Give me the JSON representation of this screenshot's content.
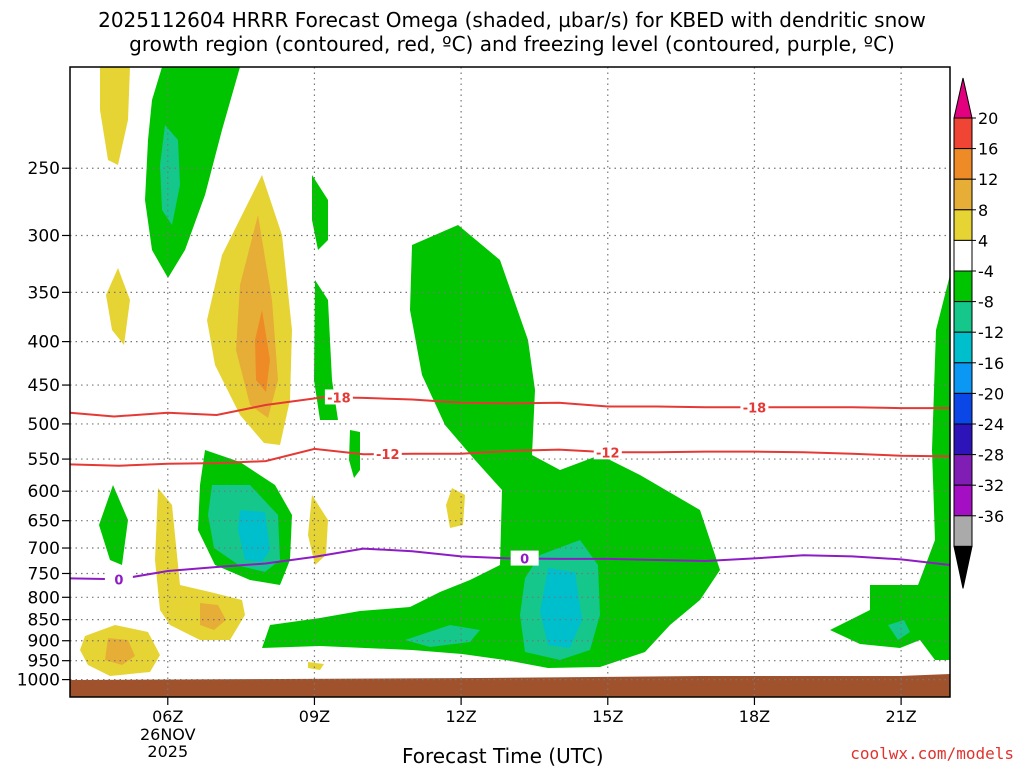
{
  "title_line1": "2025112604 HRRR Forecast Omega (shaded, µbar/s) for KBED with dendritic snow",
  "title_line2": "growth region (contoured, red, ºC) and freezing level (contoured, purple, ºC)",
  "credit": "coolwx.com/models",
  "chart_data": {
    "type": "contour",
    "title": "2025112604 HRRR Forecast Omega (shaded, µbar/s) for KBED with dendritic snow growth region (contoured, red, ºC) and freezing level (contoured, purple, ºC)",
    "xlabel": "Forecast Time (UTC)",
    "ylabel": "",
    "x_ticks": [
      {
        "hour": 6,
        "label": "06Z",
        "sublabels": [
          "26NOV",
          "2025"
        ]
      },
      {
        "hour": 9,
        "label": "09Z",
        "sublabels": []
      },
      {
        "hour": 12,
        "label": "12Z",
        "sublabels": []
      },
      {
        "hour": 15,
        "label": "15Z",
        "sublabels": []
      },
      {
        "hour": 18,
        "label": "18Z",
        "sublabels": []
      },
      {
        "hour": 21,
        "label": "21Z",
        "sublabels": []
      }
    ],
    "xlim_hours": [
      4,
      22
    ],
    "y_ticks": [
      250,
      300,
      350,
      400,
      450,
      500,
      550,
      600,
      650,
      700,
      750,
      800,
      850,
      900,
      950,
      1000
    ],
    "ylim_hPa": [
      1000,
      190
    ],
    "y_scale": "log-pressure",
    "grid": true,
    "colorbar": {
      "labels": [
        "20",
        "16",
        "12",
        "8",
        "4",
        "-4",
        "-8",
        "-12",
        "-16",
        "-20",
        "-24",
        "-28",
        "-32",
        "-36"
      ],
      "colors": [
        "#e3007f",
        "#f04535",
        "#ef8b26",
        "#e6ae36",
        "#e6d435",
        "#ffffff",
        "#00c400",
        "#15c78a",
        "#00bfcc",
        "#0b97f4",
        "#0a47e6",
        "#2d14b8",
        "#7f1db5",
        "#a50fc4",
        "#aaaaaa",
        "#000000"
      ]
    },
    "isotherms": [
      {
        "label": "-18",
        "color": "#e53935",
        "points": [
          [
            4.0,
            485
          ],
          [
            4.9,
            490
          ],
          [
            6.0,
            485
          ],
          [
            7.0,
            488
          ],
          [
            8.0,
            475
          ],
          [
            9.2,
            465
          ],
          [
            10.0,
            466
          ],
          [
            11.0,
            468
          ],
          [
            12.0,
            472
          ],
          [
            13.0,
            473
          ],
          [
            14.0,
            472
          ],
          [
            15.0,
            477
          ],
          [
            16.0,
            477
          ],
          [
            17.0,
            478
          ],
          [
            18.0,
            478
          ],
          [
            19.0,
            478
          ],
          [
            20.0,
            478
          ],
          [
            21.0,
            479
          ],
          [
            22.0,
            479
          ]
        ]
      },
      {
        "label": "-12",
        "color": "#e53935",
        "points": [
          [
            4.0,
            558
          ],
          [
            5.0,
            560
          ],
          [
            6.0,
            557
          ],
          [
            7.0,
            556
          ],
          [
            8.0,
            553
          ],
          [
            9.0,
            535
          ],
          [
            10.0,
            543
          ],
          [
            11.0,
            542
          ],
          [
            12.0,
            542
          ],
          [
            13.0,
            538
          ],
          [
            14.0,
            536
          ],
          [
            15.0,
            540
          ],
          [
            16.0,
            540
          ],
          [
            17.0,
            539
          ],
          [
            18.0,
            539
          ],
          [
            19.0,
            540
          ],
          [
            20.0,
            542
          ],
          [
            21.0,
            545
          ],
          [
            22.0,
            546
          ]
        ]
      },
      {
        "label": "0",
        "color": "#8e1cc4",
        "points": [
          [
            4.0,
            760
          ],
          [
            5.0,
            762
          ],
          [
            6.0,
            745
          ],
          [
            7.0,
            737
          ],
          [
            8.0,
            730
          ],
          [
            9.0,
            717
          ],
          [
            10.0,
            701
          ],
          [
            11.0,
            706
          ],
          [
            12.0,
            716
          ],
          [
            13.0,
            720
          ],
          [
            14.0,
            721
          ],
          [
            15.0,
            721
          ],
          [
            16.0,
            723
          ],
          [
            17.0,
            725
          ],
          [
            18.0,
            720
          ],
          [
            19.0,
            714
          ],
          [
            20.0,
            716
          ],
          [
            21.0,
            722
          ],
          [
            22.0,
            733
          ]
        ]
      }
    ]
  }
}
